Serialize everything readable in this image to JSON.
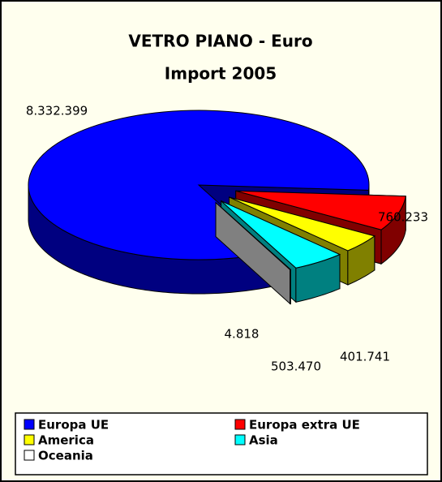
{
  "chart_data": {
    "type": "pie",
    "title": "VETRO PIANO - Euro",
    "subtitle": "Import 2005",
    "categories": [
      "Europa UE",
      "Europa extra UE",
      "America",
      "Asia",
      "Oceania"
    ],
    "values": [
      8332399,
      760233,
      401741,
      503470,
      4818
    ],
    "value_labels": [
      "8.332.399",
      "760.233",
      "401.741",
      "503.470",
      "4.818"
    ],
    "colors": [
      "#0000ff",
      "#ff0000",
      "#ffff00",
      "#00ffff",
      "#ffffff"
    ],
    "legend": "bottom"
  }
}
